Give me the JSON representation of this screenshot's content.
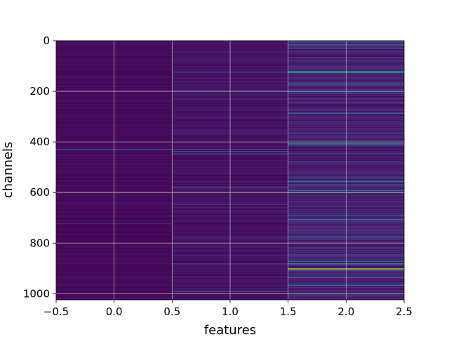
{
  "chart_data": {
    "type": "heatmap",
    "title": "",
    "xlabel": "features",
    "ylabel": "channels",
    "columns": 3,
    "rows": 1024,
    "xlim": [
      -0.5,
      2.5
    ],
    "ylim": [
      1024,
      0
    ],
    "y_inverted": true,
    "grid": true,
    "colormap": "viridis",
    "x_ticks": [
      "−0.5",
      "0.0",
      "0.5",
      "1.0",
      "1.5",
      "2.0",
      "2.5"
    ],
    "x_tick_values": [
      -0.5,
      0.0,
      0.5,
      1.0,
      1.5,
      2.0,
      2.5
    ],
    "y_ticks": [
      "0",
      "200",
      "400",
      "600",
      "800",
      "1000"
    ],
    "y_tick_values": [
      0,
      200,
      400,
      600,
      800,
      1000
    ],
    "column_baseline": [
      0.03,
      0.06,
      0.12
    ],
    "notable_rows": {
      "0": [
        [
          427,
          0.25
        ],
        [
          430,
          0.2
        ],
        [
          720,
          0.15
        ]
      ],
      "1": [
        [
          122,
          0.3
        ],
        [
          198,
          0.35
        ],
        [
          428,
          0.3
        ],
        [
          436,
          0.28
        ],
        [
          445,
          0.25
        ],
        [
          580,
          0.3
        ],
        [
          645,
          0.25
        ],
        [
          880,
          0.2
        ],
        [
          990,
          0.25
        ]
      ],
      "2": [
        [
          3,
          0.45
        ],
        [
          15,
          0.55
        ],
        [
          28,
          0.4
        ],
        [
          120,
          0.7
        ],
        [
          125,
          0.6
        ],
        [
          170,
          0.55
        ],
        [
          205,
          0.4
        ],
        [
          285,
          0.45
        ],
        [
          405,
          0.5
        ],
        [
          410,
          0.45
        ],
        [
          555,
          0.5
        ],
        [
          590,
          0.55
        ],
        [
          598,
          0.5
        ],
        [
          690,
          0.4
        ],
        [
          705,
          0.45
        ],
        [
          775,
          0.5
        ],
        [
          870,
          0.45
        ],
        [
          880,
          0.55
        ],
        [
          900,
          0.95
        ],
        [
          905,
          0.6
        ],
        [
          935,
          0.45
        ],
        [
          965,
          0.5
        ],
        [
          998,
          0.4
        ]
      ]
    }
  }
}
